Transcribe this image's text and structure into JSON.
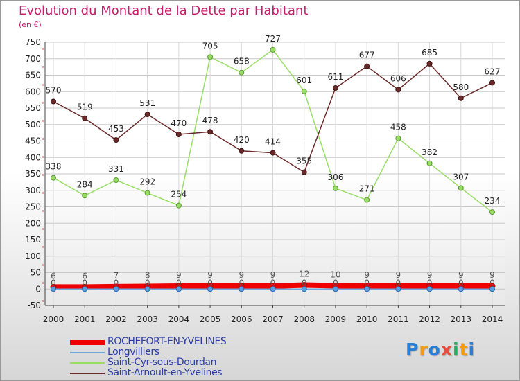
{
  "header": {
    "title": "Evolution du Montant de la Dette par Habitant",
    "subtitle": "(en €)"
  },
  "chart_data": {
    "type": "line",
    "title": "Evolution du Montant de la Dette par Habitant",
    "subtitle": "(en €)",
    "xlabel": "",
    "ylabel": "",
    "categories": [
      "2000",
      "2001",
      "2002",
      "2003",
      "2004",
      "2005",
      "2006",
      "2007",
      "2008",
      "2009",
      "2010",
      "2011",
      "2012",
      "2013",
      "2014"
    ],
    "ylim": [
      -50,
      750
    ],
    "yticks": [
      -50,
      0,
      50,
      100,
      150,
      200,
      250,
      300,
      350,
      400,
      450,
      500,
      550,
      600,
      650,
      700,
      750
    ],
    "grid": true,
    "legend_position": "bottom-left",
    "series": [
      {
        "name": "ROCHEFORT-EN-YVELINES",
        "color": "#ee0000",
        "values": [
          6,
          6,
          7,
          8,
          9,
          9,
          9,
          9,
          12,
          10,
          9,
          9,
          9,
          9,
          9
        ],
        "labels": [
          "6",
          "6",
          "7",
          "8",
          "9",
          "9",
          "9",
          "9",
          "12",
          "10",
          "9",
          "9",
          "9",
          "9",
          "9"
        ]
      },
      {
        "name": "Longvilliers",
        "color": "#6fa8dc",
        "values": [
          0,
          0,
          0,
          0,
          0,
          0,
          0,
          0,
          0,
          0,
          0,
          0,
          0,
          0,
          0
        ],
        "labels": [
          "0",
          "0",
          "0",
          "0",
          "0",
          "0",
          "0",
          "0",
          "0",
          "0",
          "0",
          "0",
          "0",
          "0",
          "0"
        ]
      },
      {
        "name": "Saint-Cyr-sous-Dourdan",
        "color": "#99dd66",
        "values": [
          338,
          284,
          331,
          292,
          254,
          705,
          658,
          727,
          601,
          306,
          271,
          458,
          382,
          307,
          234
        ],
        "labels": [
          "338",
          "284",
          "331",
          "292",
          "254",
          "705",
          "658",
          "727",
          "601",
          "306",
          "271",
          "458",
          "382",
          "307",
          "234"
        ]
      },
      {
        "name": "Saint-Arnoult-en-Yvelines",
        "color": "#6b2a2a",
        "values": [
          570,
          519,
          453,
          531,
          470,
          478,
          420,
          414,
          355,
          611,
          677,
          606,
          685,
          580,
          627
        ],
        "labels": [
          "570",
          "519",
          "453",
          "531",
          "470",
          "478",
          "420",
          "414",
          "355",
          "611",
          "677",
          "606",
          "685",
          "580",
          "627"
        ]
      }
    ]
  },
  "legend": {
    "items": [
      {
        "label": "ROCHEFORT-EN-YVELINES"
      },
      {
        "label": "Longvilliers"
      },
      {
        "label": "Saint-Cyr-sous-Dourdan"
      },
      {
        "label": "Saint-Arnoult-en-Yvelines"
      }
    ]
  },
  "brand": {
    "letters": [
      "P",
      "r",
      "o",
      "x",
      "i",
      "t",
      "i"
    ],
    "colors": [
      "#2a7fd4",
      "#f39c12",
      "#2a7fd4",
      "#e74c3c",
      "#27ae60",
      "#f39c12",
      "#2a7fd4"
    ]
  }
}
